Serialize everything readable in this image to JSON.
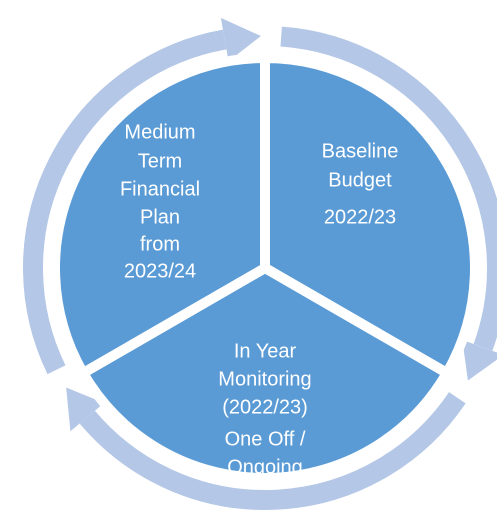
{
  "segments": [
    {
      "lines": [
        "Baseline",
        "Budget"
      ],
      "sub": [
        "2022/23"
      ]
    },
    {
      "lines": [
        "In Year",
        "Monitoring",
        "(2022/23)"
      ],
      "sub": [
        "One Off /",
        "Ongoing"
      ]
    },
    {
      "lines": [
        "Medium",
        "Term",
        "Financial",
        "Plan",
        "from",
        "2023/24"
      ],
      "sub": []
    }
  ]
}
